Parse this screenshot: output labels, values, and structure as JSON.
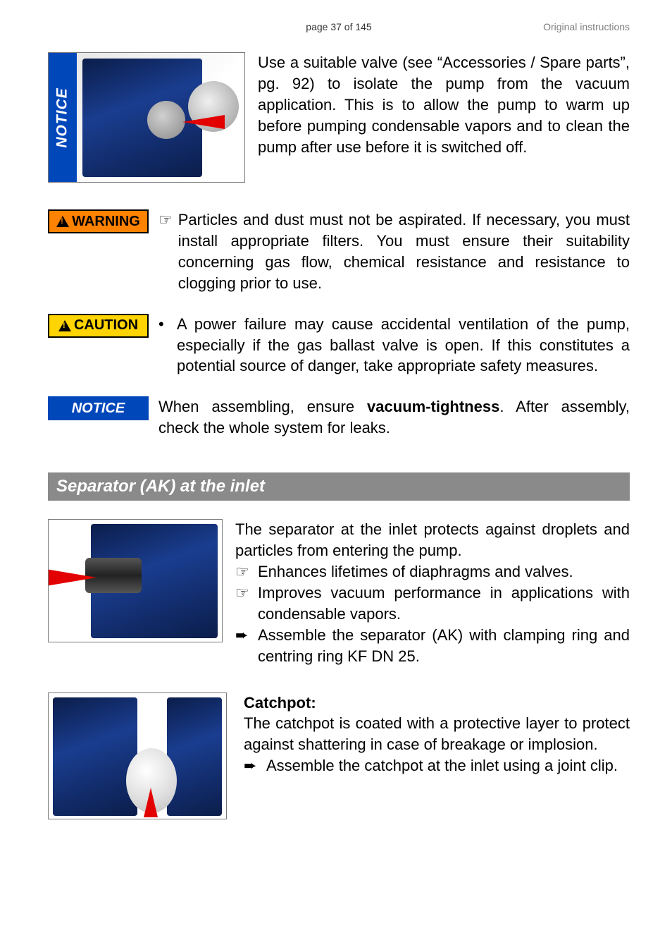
{
  "colors": {
    "notice_bg": "#0047ba",
    "warning_bg": "#ff8200",
    "caution_bg": "#ffd400",
    "section_bg": "#8a8a8a",
    "arrow_red": "#e20000",
    "pump_dark": "#0b1d4a",
    "pump_light": "#1a3d8f",
    "header_grey": "#808080",
    "border_grey": "#7a7a7a"
  },
  "typography": {
    "body_fontsize_pt": 16,
    "header_fontsize_pt": 10,
    "section_fontsize_pt": 18,
    "font_family": "Arial"
  },
  "header": {
    "page_info": "page 37 of 145",
    "right_label": "Original instructions"
  },
  "notice1": {
    "vert_label": "NOTICE",
    "text": "Use a suitable valve (see “Accessories / Spare parts”, pg. 92) to isolate the pump from the vacuum application. This is to allow the pump to warm up before pumping condensable vapors and to clean the pump after use before it is switched off."
  },
  "warning": {
    "label": "WARNING",
    "text": "Particles and dust must not be aspirated. If necessary, you must install appropriate filters. You must ensure their suitability concerning gas flow, chemical resistance and resistance to clogging prior to use."
  },
  "caution": {
    "label": "CAUTION",
    "text": "A power failure may cause accidental ventilation of the pump, especially if the gas ballast valve is open. If this constitutes a potential source of danger, take appropriate safety measures."
  },
  "notice2": {
    "label": "NOTICE",
    "text_pre": "When assembling, ensure ",
    "text_bold": "vacuum-tightness",
    "text_post": ". After assembly, check the whole system for leaks."
  },
  "section": {
    "title": "Separator (AK) at the inlet"
  },
  "separator": {
    "intro": "The separator at the inlet protects against droplets and particles from entering the pump.",
    "b1": "Enhances lifetimes of diaphragms and valves.",
    "b2": "Improves vacuum performance in applications with condensable vapors.",
    "b3": "Assemble the separator (AK) with clamping ring and centring ring KF DN 25."
  },
  "catchpot": {
    "heading": "Catchpot:",
    "text": "The catchpot is coated with a protective layer to protect against shattering in case of breakage or implosion.",
    "b1": "Assemble the catchpot at the inlet using a joint clip."
  },
  "glyphs": {
    "hand": "☞",
    "arrow": "➨",
    "dot": "•"
  }
}
